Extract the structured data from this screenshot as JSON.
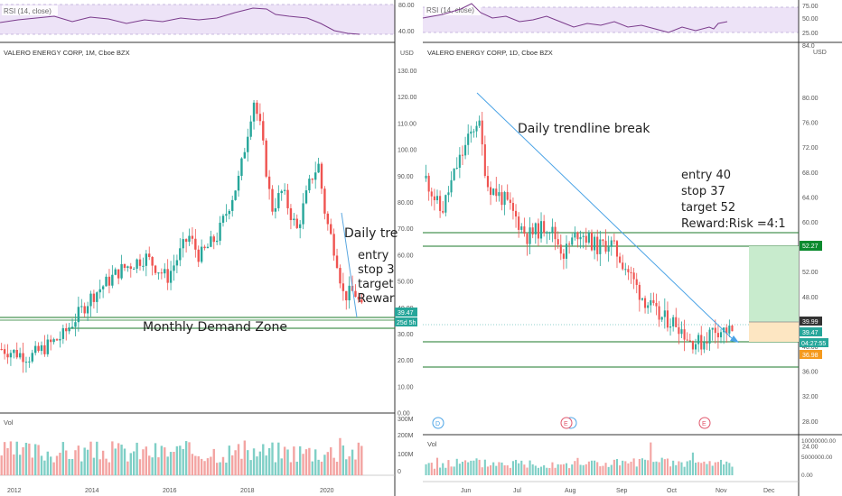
{
  "left": {
    "rsi_label": "RSI (14, close)",
    "title": "VALERO ENERGY CORP, 1M, Cboe BZX",
    "currency": "USD",
    "rsi_ticks": [
      "80.00",
      "40.00"
    ],
    "price_ticks": [
      "130.00",
      "120.00",
      "110.00",
      "100.00",
      "90.00",
      "80.00",
      "70.00",
      "60.00",
      "50.00",
      "40.00",
      "30.00",
      "20.00",
      "10.00",
      "0.00"
    ],
    "vol_label": "Vol",
    "vol_ticks": [
      "300M",
      "200M",
      "100M",
      "0"
    ],
    "x_ticks": [
      "2012",
      "2014",
      "2016",
      "2018",
      "2020"
    ],
    "price_tag": "39.47",
    "time_tag": "25d 5h",
    "annotations": {
      "zone": "Monthly Demand Zone",
      "trend": "Daily tre",
      "entry": "entry",
      "stop": "stop 3",
      "target": "target",
      "reward": "Rewar"
    }
  },
  "right": {
    "rsi_label": "RSI (14, close)",
    "title": "VALERO ENERGY CORP, 1D, Cboe BZX",
    "currency": "USD",
    "top_tick": "84.0",
    "rsi_ticks": [
      "75.00",
      "50.00",
      "25.00"
    ],
    "price_ticks": [
      "80.00",
      "76.00",
      "72.00",
      "68.00",
      "64.00",
      "60.00",
      "56.00",
      "52.00",
      "48.00",
      "44.00",
      "40.00",
      "36.00",
      "32.00",
      "28.00",
      "24.00"
    ],
    "vol_label": "Vol",
    "vol_ticks": [
      "10000000.00",
      "5000000.00",
      "0.00"
    ],
    "x_ticks": [
      "Jun",
      "Jul",
      "Aug",
      "Sep",
      "Oct",
      "Nov",
      "Dec"
    ],
    "event_markers": [
      "D",
      "E",
      "E"
    ],
    "tags": {
      "target": "52.27",
      "last": "39.99",
      "close": "39.47",
      "countdown": "04:27:55",
      "stop": "36.98"
    },
    "annotations": {
      "trendline": "Daily trendline break",
      "entry": "entry 40",
      "stop": "stop 37",
      "target": "target 52",
      "reward": "Reward:Risk =4:1"
    }
  },
  "chart_data": [
    {
      "type": "candlestick",
      "title": "VALERO ENERGY CORP, 1M, Cboe BZX",
      "ylim": [
        0,
        130
      ],
      "x_range": [
        "2011-01",
        "2020-11"
      ],
      "series": [
        {
          "values": [
            {
              "x": "2011-01",
              "y": 25
            },
            {
              "x": "2012-01",
              "y": 23
            },
            {
              "x": "2013-01",
              "y": 38
            },
            {
              "x": "2014-01",
              "y": 53
            },
            {
              "x": "2015-01",
              "y": 62
            },
            {
              "x": "2016-01",
              "y": 65
            },
            {
              "x": "2017-01",
              "y": 67
            },
            {
              "x": "2018-01",
              "y": 96
            },
            {
              "x": "2018-09",
              "y": 120
            },
            {
              "x": "2019-01",
              "y": 78
            },
            {
              "x": "2019-09",
              "y": 85
            },
            {
              "x": "2020-01",
              "y": 93
            },
            {
              "x": "2020-03",
              "y": 42
            },
            {
              "x": "2020-06",
              "y": 60
            },
            {
              "x": "2020-10",
              "y": 39.47
            }
          ]
        }
      ],
      "horizontal_lines": [
        40.5,
        37,
        33
      ],
      "annotations": [
        "Monthly Demand Zone"
      ]
    },
    {
      "type": "candlestick",
      "title": "VALERO ENERGY CORP, 1D, Cboe BZX",
      "ylim": [
        22,
        85
      ],
      "x_range": [
        "2020-05-15",
        "2020-12-20"
      ],
      "series": [
        {
          "values": [
            {
              "x": "2020-05-15",
              "y": 66
            },
            {
              "x": "2020-05-25",
              "y": 62
            },
            {
              "x": "2020-06-01",
              "y": 71
            },
            {
              "x": "2020-06-09",
              "y": 76.5
            },
            {
              "x": "2020-06-20",
              "y": 63
            },
            {
              "x": "2020-07-10",
              "y": 56
            },
            {
              "x": "2020-07-25",
              "y": 57
            },
            {
              "x": "2020-08-15",
              "y": 55
            },
            {
              "x": "2020-09-01",
              "y": 54
            },
            {
              "x": "2020-09-20",
              "y": 46
            },
            {
              "x": "2020-10-10",
              "y": 42
            },
            {
              "x": "2020-10-25",
              "y": 37.5
            },
            {
              "x": "2020-11-03",
              "y": 39.47
            }
          ]
        }
      ],
      "trendline": {
        "from": {
          "x": "2020-06-09",
          "y": 77
        },
        "to": {
          "x": "2020-11-05",
          "y": 37.5
        }
      },
      "horizontal_lines": [
        55,
        52.27,
        37.5,
        32.5
      ],
      "trade": {
        "entry": 40,
        "stop": 37,
        "target": 52,
        "reward_risk": "4:1"
      },
      "annotations": [
        "Daily trendline break",
        "entry 40",
        "stop 37",
        "target 52",
        "Reward:Risk =4:1"
      ]
    }
  ]
}
